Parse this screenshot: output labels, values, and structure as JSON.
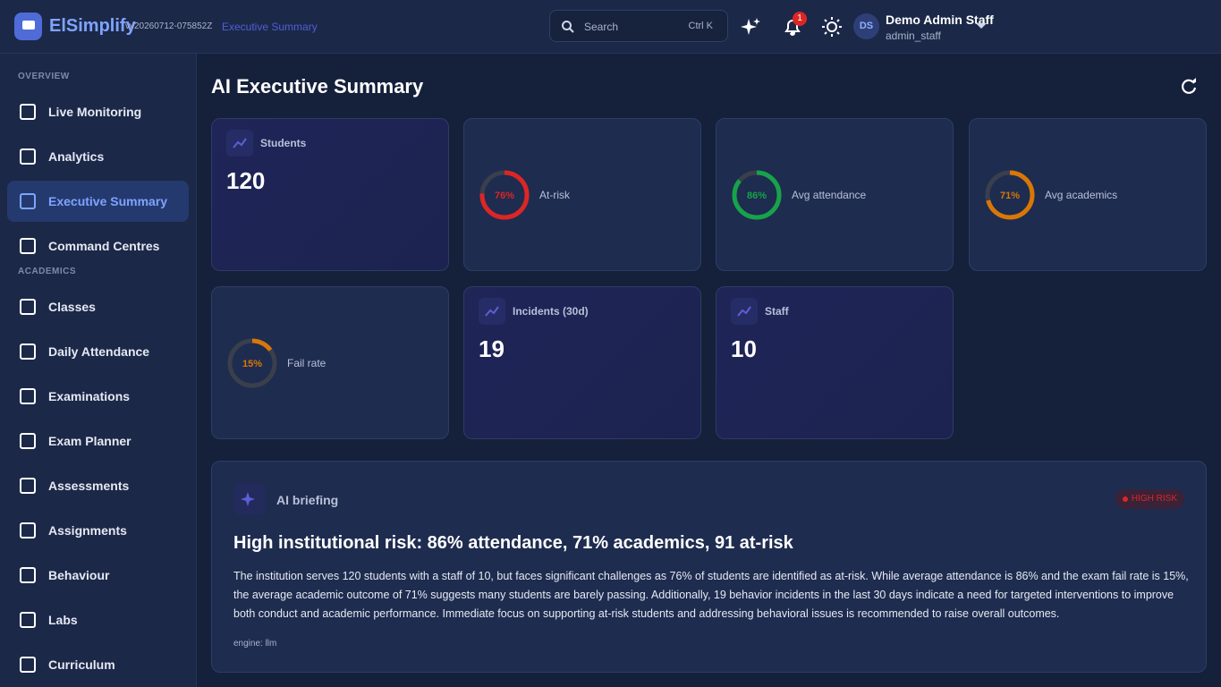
{
  "header": {
    "brand": "ElSimplify",
    "version": "vv20260712-075852Z",
    "breadcrumb": "Executive Summary",
    "search_placeholder": "Search",
    "search_shortcut": "Ctrl K",
    "notification_count": "1",
    "user": {
      "initials": "DS",
      "name": "Demo Admin Staff",
      "role": "admin_staff"
    }
  },
  "sidebar": {
    "sections": [
      {
        "title": "OVERVIEW",
        "items": [
          "Live Monitoring",
          "Analytics",
          "Executive Summary",
          "Command Centres"
        ]
      },
      {
        "title": "ACADEMICS",
        "items": [
          "Classes",
          "Daily Attendance",
          "Examinations",
          "Exam Planner",
          "Assessments",
          "Assignments",
          "Behaviour",
          "Labs",
          "Curriculum"
        ]
      }
    ]
  },
  "page": {
    "title": "AI Executive Summary"
  },
  "kpis": [
    {
      "type": "stat",
      "label": "Students",
      "value": 120
    },
    {
      "type": "gauge",
      "label": "At-risk",
      "value": 76,
      "value_label": "76%",
      "color": "#dc2626"
    },
    {
      "type": "gauge",
      "label": "Avg attendance",
      "value": 86,
      "value_label": "86%",
      "color": "#16a34a"
    },
    {
      "type": "gauge",
      "label": "Avg academics",
      "value": 71,
      "value_label": "71%",
      "color": "#d97706"
    },
    {
      "type": "gauge",
      "label": "Fail rate",
      "value": 15,
      "value_label": "15%",
      "color": "#d97706"
    },
    {
      "type": "stat",
      "label": "Incidents (30d)",
      "value": 19
    },
    {
      "type": "stat",
      "label": "Staff",
      "value": 10
    }
  ],
  "briefing": {
    "title": "AI briefing",
    "badge": "HIGH RISK",
    "headline": "High institutional risk: 86% attendance, 71% academics, 91 at-risk",
    "body": "The institution serves 120 students with a staff of 10, but faces significant challenges as 76% of students are identified as at-risk. While average attendance is 86% and the exam fail rate is 15%, the average academic outcome of 71% suggests many students are barely passing. Additionally, 19 behavior incidents in the last 30 days indicate a need for targeted interventions to improve both conduct and academic performance. Immediate focus on supporting at-risk students and addressing behavioral issues is recommended to raise overall outcomes.",
    "engine": "engine: llm"
  }
}
